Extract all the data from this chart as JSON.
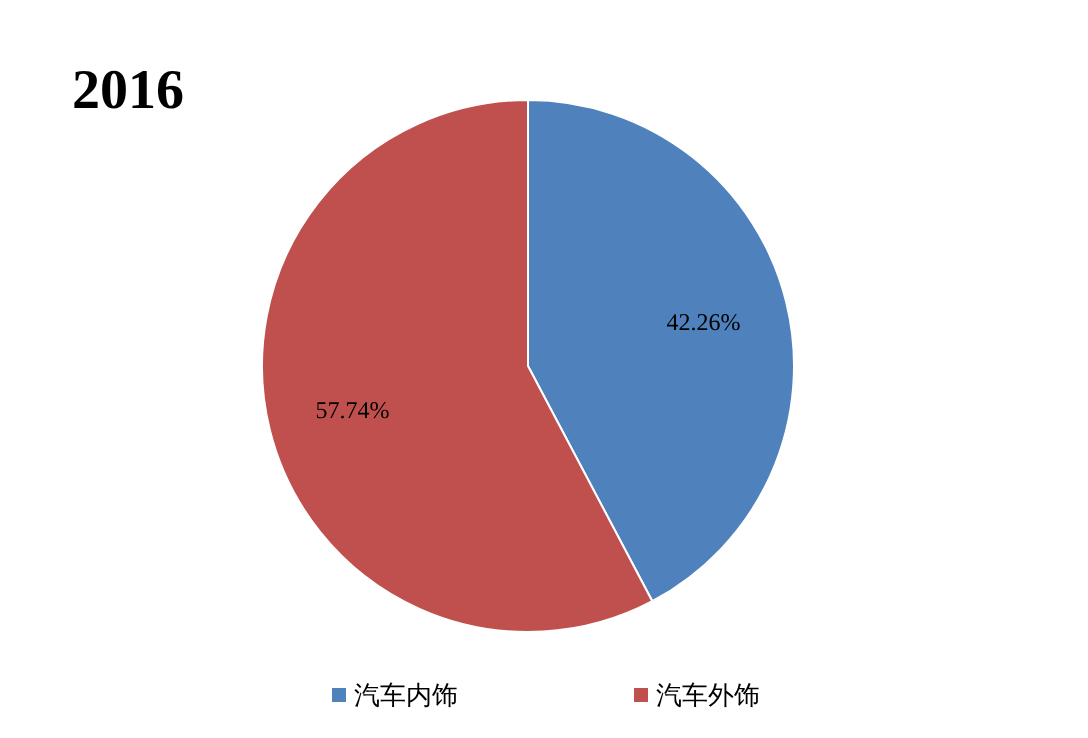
{
  "chart_data": {
    "type": "pie",
    "title": "2016",
    "categories": [
      "汽车内饰",
      "汽车外饰"
    ],
    "values": [
      42.26,
      57.74
    ],
    "colors": [
      "#4f81bd",
      "#c0504d"
    ],
    "value_labels": [
      "42.26%",
      "57.74%"
    ],
    "legend": "bottom"
  }
}
